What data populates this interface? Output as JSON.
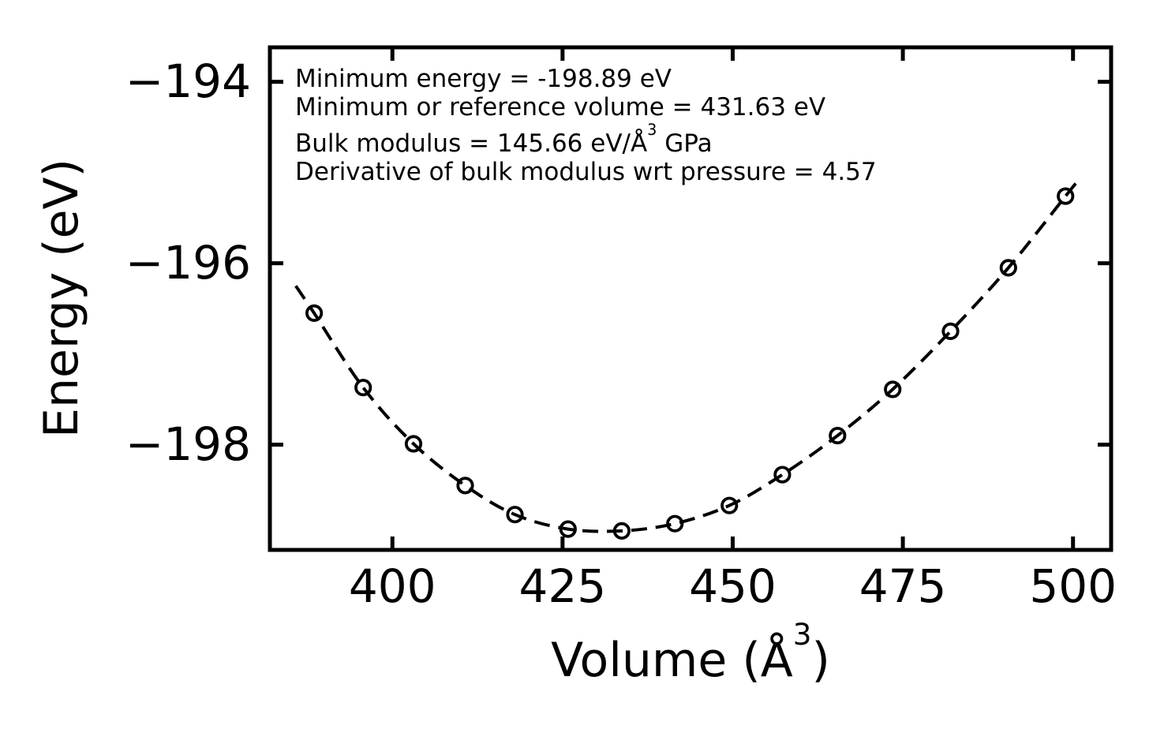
{
  "chart_data": {
    "type": "line",
    "title": "",
    "xlabel": "Volume (Å³)",
    "xlabel_prefix": "Volume (Å",
    "xlabel_sup": "3",
    "xlabel_suffix": ")",
    "ylabel": "Energy (eV)",
    "x_ticks": [
      400,
      425,
      450,
      475,
      500
    ],
    "x_tick_labels": [
      "400",
      "425",
      "450",
      "475",
      "500"
    ],
    "y_ticks": [
      -194,
      -196,
      -198
    ],
    "y_tick_labels": [
      "−194",
      "−196",
      "−198"
    ],
    "x_range": [
      382.0,
      505.6
    ],
    "y_range": [
      -199.16,
      -193.62
    ],
    "grid": false,
    "legend": "none",
    "line_style": "dashed",
    "marker_style": "open-circle",
    "color": "#000000",
    "background_color": "#ffffff",
    "series": [
      {
        "name": "energy-volume-data",
        "points": [
          [
            388.5,
            -196.55
          ],
          [
            395.7,
            -197.37
          ],
          [
            403.1,
            -197.99
          ],
          [
            410.7,
            -198.45
          ],
          [
            418.0,
            -198.77
          ],
          [
            425.8,
            -198.93
          ],
          [
            433.7,
            -198.95
          ],
          [
            441.5,
            -198.87
          ],
          [
            449.5,
            -198.67
          ],
          [
            457.3,
            -198.33
          ],
          [
            465.4,
            -197.9
          ],
          [
            473.5,
            -197.39
          ],
          [
            482.0,
            -196.75
          ],
          [
            490.5,
            -196.05
          ],
          [
            498.9,
            -195.26
          ]
        ]
      }
    ],
    "curve_extension": {
      "start": [
        385.8,
        -196.25
      ],
      "end": [
        500.4,
        -195.12
      ]
    },
    "fit_parameters": {
      "minimum_energy_eV": -198.89,
      "minimum_or_reference_volume": 431.63,
      "bulk_modulus": 145.66,
      "bulk_modulus_derivative_wrt_pressure": 4.57
    },
    "annotation_lines": [
      {
        "prefix": "Minimum energy = -198.89 eV",
        "sup": "",
        "suffix": ""
      },
      {
        "prefix": "Minimum or reference volume = 431.63 eV",
        "sup": "",
        "suffix": ""
      },
      {
        "prefix": "Bulk modulus = 145.66 eV/Å",
        "sup": "3",
        "suffix": " GPa"
      },
      {
        "prefix": "Derivative of bulk modulus wrt pressure = 4.57",
        "sup": "",
        "suffix": ""
      }
    ]
  }
}
